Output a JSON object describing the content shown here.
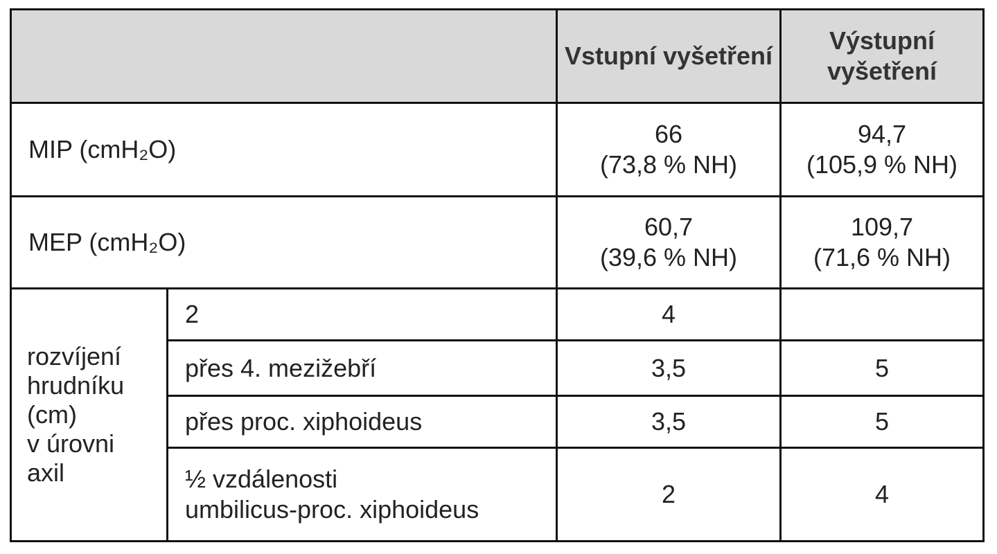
{
  "table": {
    "header": {
      "columns": [
        "Vstupní vyšetření",
        "Výstupní vyšetření"
      ]
    },
    "rows": [
      {
        "label": "MIP (cmH₂O)",
        "entry": {
          "value": "66",
          "note": "(73,8 % NH)"
        },
        "exit": {
          "value": "94,7",
          "note": "(105,9 % NH)"
        }
      },
      {
        "label": "MEP (cmH₂O)",
        "entry": {
          "value": "60,7",
          "note": "(39,6 % NH)"
        },
        "exit": {
          "value": "109,7",
          "note": "(71,6 % NH)"
        }
      }
    ],
    "group": {
      "label_lines": [
        "rozvíjení",
        "hrudníku",
        "(cm)",
        "v úrovni",
        "axil"
      ],
      "rows": [
        {
          "label_lines": [
            "2"
          ],
          "entry": "4"
        },
        {
          "label_lines": [
            "přes 4. mezižebří"
          ],
          "entry": "3,5",
          "exit": "5"
        },
        {
          "label_lines": [
            "přes proc. xiphoideus"
          ],
          "entry": "3,5",
          "exit": "5"
        },
        {
          "label_lines": [
            "½ vzdálenosti",
            "umbilicus-proc. xiphoideus"
          ],
          "entry": "2",
          "exit": "4"
        }
      ]
    }
  }
}
